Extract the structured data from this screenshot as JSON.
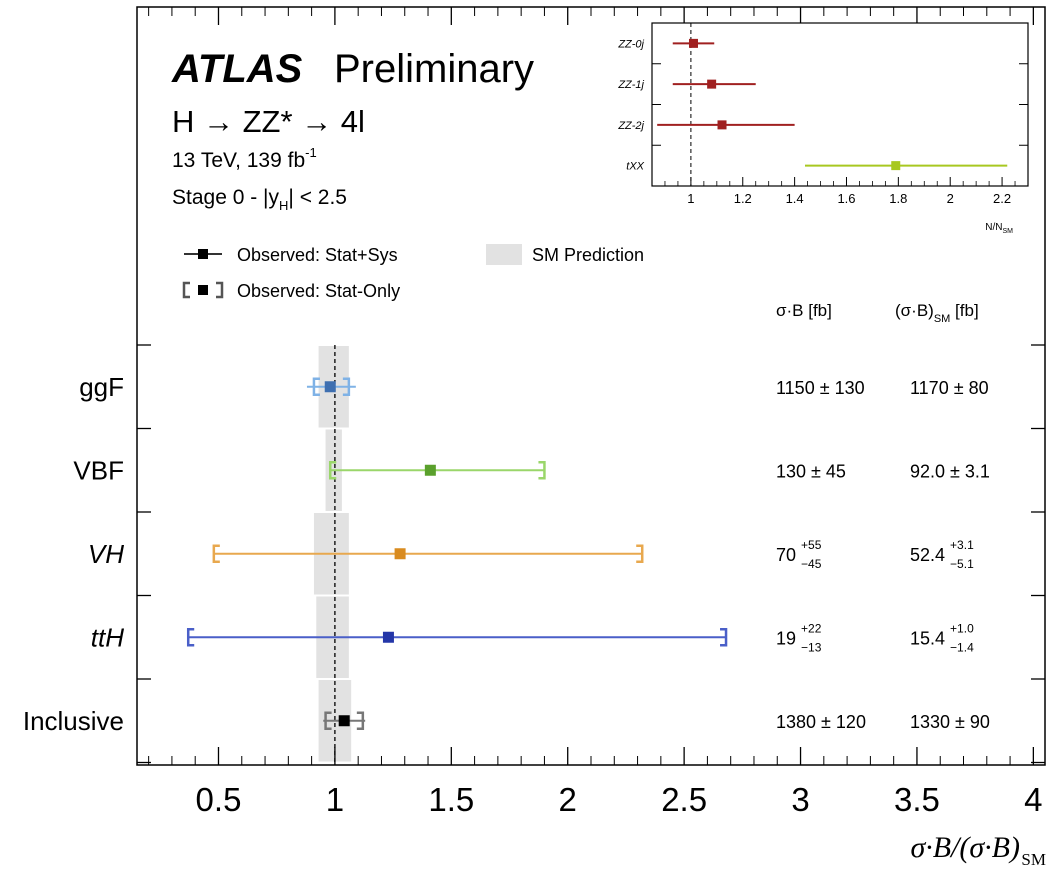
{
  "chart_data": [
    {
      "type": "scatter",
      "experiment": "ATLAS",
      "preliminary": "Preliminary",
      "process": "H → ZZ* → 4l",
      "energy_lumi": "13 TeV, 139 fb",
      "lumi_exponent": "-1",
      "stage": "Stage 0 - |y",
      "stage_sub": "H",
      "stage_cut": "| < 2.5",
      "xlabel": "σ·B/(σ·B)",
      "xlabel_sub": "SM",
      "xlim": [
        0.15,
        4.05
      ],
      "x_ticks": [
        0.5,
        1,
        1.5,
        2,
        2.5,
        3,
        3.5,
        4
      ],
      "x_tick_labels": [
        "0.5",
        "1",
        "1.5",
        "2",
        "2.5",
        "3",
        "3.5",
        "4"
      ],
      "reference_line": 1,
      "legend": {
        "placement": "top-left",
        "entries": [
          {
            "label": "Observed: Stat+Sys",
            "kind": "statsys"
          },
          {
            "label": "SM Prediction",
            "kind": "band"
          },
          {
            "label": "Observed: Stat-Only",
            "kind": "statonly"
          }
        ]
      },
      "table_headers": {
        "col1": "σ·B [fb]",
        "col2_main": "(σ·B)",
        "col2_sub": "SM",
        "col2_unit": " [fb]"
      },
      "categories": [
        {
          "label": "ggF",
          "italic": false,
          "value": 0.98,
          "tot": [
            0.88,
            1.09
          ],
          "stat": [
            0.91,
            1.06
          ],
          "sm_band": [
            0.93,
            1.06
          ],
          "color": "#3e6fb0",
          "stat_color": "#7fb2e6",
          "xs": {
            "central": "1150",
            "unc": "± 130"
          },
          "sm": {
            "central": "1170",
            "unc": "± 80"
          }
        },
        {
          "label": "VBF",
          "italic": false,
          "value": 1.41,
          "tot": [
            0.98,
            1.9
          ],
          "stat": [
            0.98,
            1.9
          ],
          "sm_band": [
            0.96,
            1.03
          ],
          "color": "#5aa02c",
          "stat_color": "#9ad66a",
          "xs": {
            "central": "130",
            "unc": "± 45"
          },
          "sm": {
            "central": "92.0",
            "unc": "± 3.1"
          }
        },
        {
          "label": "VH",
          "italic": true,
          "value": 1.28,
          "tot": [
            0.48,
            2.32
          ],
          "stat": [
            0.48,
            2.32
          ],
          "sm_band": [
            0.91,
            1.06
          ],
          "color": "#d98b1f",
          "stat_color": "#e8a84e",
          "xs": {
            "central": "70",
            "up": "+55",
            "down": "−45"
          },
          "sm": {
            "central": "52.4",
            "up": "+3.1",
            "down": "−5.1"
          }
        },
        {
          "label": "ttH",
          "italic": true,
          "value": 1.23,
          "tot": [
            0.37,
            2.68
          ],
          "stat": [
            0.37,
            2.68
          ],
          "sm_band": [
            0.92,
            1.06
          ],
          "color": "#2436a8",
          "stat_color": "#4a5fc8",
          "xs": {
            "central": "19",
            "up": "+22",
            "down": "−13"
          },
          "sm": {
            "central": "15.4",
            "up": "+1.0",
            "down": "−1.4"
          }
        },
        {
          "label": "Inclusive",
          "italic": false,
          "value": 1.04,
          "tot": [
            0.95,
            1.13
          ],
          "stat": [
            0.96,
            1.12
          ],
          "sm_band": [
            0.93,
            1.07
          ],
          "color": "#000000",
          "stat_color": "#777777",
          "xs": {
            "central": "1380",
            "unc": "± 120"
          },
          "sm": {
            "central": "1330",
            "unc": "± 90"
          }
        }
      ]
    },
    {
      "type": "scatter",
      "xlabel": "N/N",
      "xlabel_sub": "SM",
      "xlim": [
        0.85,
        2.3
      ],
      "x_ticks": [
        1,
        1.2,
        1.4,
        1.6,
        1.8,
        2,
        2.2
      ],
      "x_tick_labels": [
        "1",
        "1.2",
        "1.4",
        "1.6",
        "1.8",
        "2",
        "2.2"
      ],
      "reference_line": 1,
      "categories": [
        {
          "label": "ZZ-0j",
          "value": 1.01,
          "err": [
            0.93,
            1.09
          ],
          "color": "#a02020"
        },
        {
          "label": "ZZ-1j",
          "value": 1.08,
          "err": [
            0.93,
            1.25
          ],
          "color": "#a02020"
        },
        {
          "label": "ZZ-2j",
          "value": 1.12,
          "err": [
            0.87,
            1.4
          ],
          "color": "#a02020"
        },
        {
          "label": "tXX",
          "value": 1.79,
          "err": [
            1.44,
            2.22
          ],
          "color": "#a8c820"
        }
      ]
    }
  ]
}
